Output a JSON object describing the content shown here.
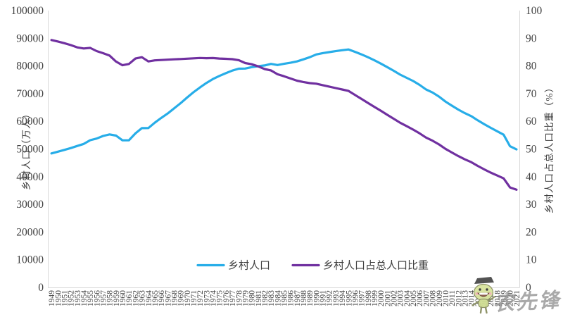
{
  "watermark": {
    "text": "农先锋"
  },
  "chart_data": {
    "type": "line",
    "title": "",
    "grid": false,
    "legend_position": "bottom-center",
    "x": [
      1949,
      1950,
      1951,
      1952,
      1953,
      1954,
      1955,
      1956,
      1957,
      1958,
      1959,
      1960,
      1961,
      1962,
      1963,
      1964,
      1965,
      1966,
      1967,
      1968,
      1969,
      1970,
      1971,
      1972,
      1973,
      1974,
      1975,
      1976,
      1977,
      1978,
      1979,
      1980,
      1981,
      1982,
      1983,
      1984,
      1985,
      1986,
      1987,
      1988,
      1989,
      1990,
      1991,
      1992,
      1993,
      1994,
      1995,
      1996,
      1997,
      1998,
      1999,
      2000,
      2001,
      2002,
      2003,
      2004,
      2005,
      2006,
      2007,
      2008,
      2009,
      2010,
      2011,
      2012,
      2013,
      2014,
      2015,
      2016,
      2017,
      2018,
      2019,
      2020,
      2021
    ],
    "series": [
      {
        "name": "乡村人口",
        "axis": "left",
        "color": "#27ADE8",
        "values": [
          48402,
          49027,
          49668,
          50319,
          51082,
          51823,
          53180,
          53768,
          54704,
          55273,
          54836,
          53134,
          53152,
          55636,
          57526,
          57549,
          59493,
          61229,
          62820,
          64696,
          66554,
          68568,
          70518,
          72242,
          73866,
          75264,
          76390,
          77376,
          78316,
          79014,
          79047,
          79565,
          79901,
          80174,
          80734,
          80340,
          80757,
          81141,
          81626,
          82365,
          83164,
          84138,
          84620,
          84996,
          85344,
          85681,
          85947,
          85085,
          84177,
          83153,
          82038,
          80837,
          79563,
          78241,
          76851,
          75705,
          74544,
          73160,
          71496,
          70399,
          68938,
          67113,
          65656,
          64222,
          62961,
          61866,
          60346,
          58973,
          57661,
          56401,
          55162,
          50992,
          49835
        ]
      },
      {
        "name": "乡村人口占总人口比重",
        "axis": "right",
        "color": "#7030A0",
        "values": [
          89.36,
          88.82,
          88.22,
          87.54,
          86.69,
          86.31,
          86.52,
          85.38,
          84.61,
          83.75,
          81.59,
          80.25,
          80.71,
          82.67,
          83.16,
          81.63,
          82.02,
          82.14,
          82.26,
          82.38,
          82.5,
          82.62,
          82.74,
          82.87,
          82.8,
          82.84,
          82.66,
          82.56,
          82.45,
          82.08,
          81.04,
          80.61,
          79.84,
          78.87,
          78.38,
          76.99,
          76.29,
          75.48,
          74.68,
          74.19,
          73.79,
          73.59,
          73.06,
          72.54,
          72.01,
          71.49,
          70.96,
          69.52,
          68.09,
          66.65,
          65.22,
          63.78,
          62.34,
          60.91,
          59.47,
          58.24,
          57.01,
          55.66,
          54.11,
          53.01,
          51.66,
          50.05,
          48.73,
          47.43,
          46.27,
          45.23,
          43.9,
          42.65,
          41.48,
          40.42,
          39.4,
          36.11,
          35.28
        ]
      }
    ],
    "left_axis": {
      "label": "乡村人口（万人）",
      "min": 0,
      "max": 100000,
      "step": 10000
    },
    "right_axis": {
      "label": "乡村人口占总人口比重（%）",
      "min": 0,
      "max": 100,
      "step": 10
    }
  }
}
